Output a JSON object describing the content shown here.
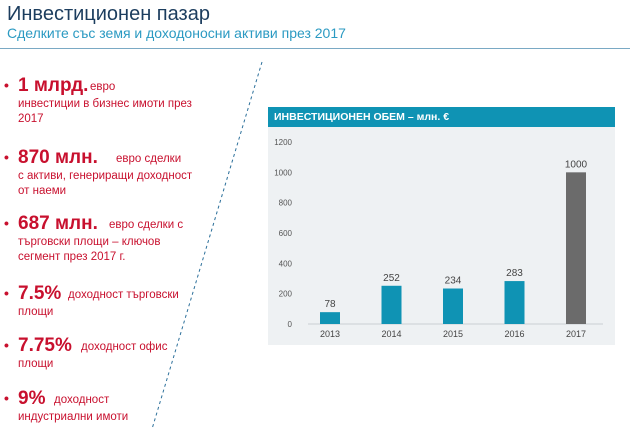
{
  "header": {
    "title": "Инвестиционен пазар",
    "subtitle": "Сделките със земя и доходоносни активи през 2017"
  },
  "facts": [
    {
      "big": "1 млрд.",
      "first": "евро",
      "rest": "инвестиции в бизнес имоти през 2017"
    },
    {
      "big": "870 млн.",
      "first": "евро сделки",
      "rest": "с активи, генериращи доходност от наеми"
    },
    {
      "big": "687 млн.",
      "first": "евро сделки с",
      "rest": "търговски площи – ключов сегмент през 2017 г."
    },
    {
      "big": "7.5%",
      "first": "доходност търговски",
      "rest": "площи"
    },
    {
      "big": "7.75%",
      "first": "доходност офис",
      "rest": "площи"
    },
    {
      "big": "9%",
      "first": "доходност",
      "rest": "индустриални имоти"
    }
  ],
  "colors": {
    "accent_red": "#c8102e",
    "title_navy": "#1c3d5e",
    "subtitle_blue": "#2b9ac2",
    "bar_teal": "#0f93b4",
    "bar_highlight_gray": "#6b6b6b"
  },
  "chart_data": {
    "type": "bar",
    "title": "ИНВЕСТИЦИОНЕН ОБЕМ – млн. €",
    "categories": [
      "2013",
      "2014",
      "2015",
      "2016",
      "2017"
    ],
    "values": [
      78,
      252,
      234,
      283,
      1000
    ],
    "data_labels": [
      "78",
      "252",
      "234",
      "283",
      "1000"
    ],
    "bar_colors": [
      "#0f93b4",
      "#0f93b4",
      "#0f93b4",
      "#0f93b4",
      "#6b6b6b"
    ],
    "y_ticks": [
      0,
      200,
      400,
      600,
      800,
      1000,
      1200
    ],
    "y_tick_labels": [
      "0",
      "200",
      "400",
      "600",
      "800",
      "1000",
      "1200"
    ],
    "ylim": [
      0,
      1200
    ],
    "grid": false,
    "legend": "none"
  }
}
